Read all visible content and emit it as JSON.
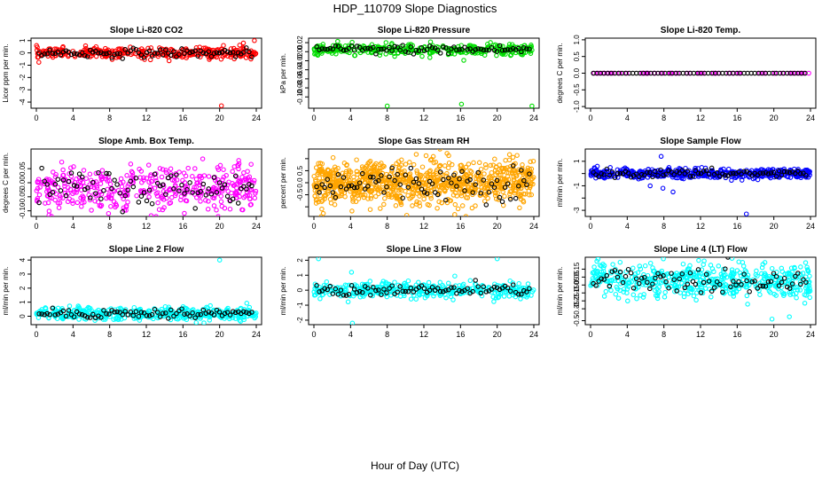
{
  "title": "HDP_110709  Slope Diagnostics",
  "xlabel": "Hour of Day (UTC)",
  "chart_data": [
    {
      "id": "co2",
      "type": "scatter",
      "title": "Slope Li-820 CO2",
      "ylabel": "Licor ppm per min.",
      "xlim": [
        0,
        24
      ],
      "xticks": [
        0,
        4,
        8,
        12,
        16,
        20,
        24
      ],
      "ylim": [
        -4.5,
        1.2
      ],
      "yticks": [
        -4,
        -3,
        -2,
        -1,
        0,
        1
      ],
      "ytick_labels": [
        "-4",
        "-3",
        "-2",
        "-1",
        "0",
        "1"
      ],
      "color": "#ff0000",
      "n_color": 360,
      "n_black": 80,
      "mean": 0.0,
      "sd": 0.22,
      "outliers": [
        [
          20.2,
          -4.3
        ],
        [
          23.8,
          1.0
        ],
        [
          22.6,
          0.8
        ]
      ]
    },
    {
      "id": "pressure",
      "type": "scatter",
      "title": "Slope Li-820 Pressure",
      "ylabel": "kPa per min.",
      "xlim": [
        0,
        24
      ],
      "xticks": [
        0,
        4,
        8,
        12,
        16,
        20,
        24
      ],
      "ylim": [
        -0.125,
        0.03
      ],
      "yticks": [
        -0.1,
        -0.08,
        -0.06,
        -0.04,
        -0.02,
        0,
        0.02
      ],
      "ytick_labels": [
        "-0.10",
        "-0.08",
        "-0.06",
        "-0.04",
        "-0.02",
        "0.00",
        "0.02"
      ],
      "color": "#00dd00",
      "n_color": 360,
      "n_black": 80,
      "mean": 0.005,
      "sd": 0.006,
      "outliers": [
        [
          8,
          -0.12
        ],
        [
          16.1,
          -0.116
        ],
        [
          23.8,
          -0.12
        ]
      ]
    },
    {
      "id": "temp",
      "type": "scatter",
      "title": "Slope Li-820 Temp.",
      "ylabel": "degrees C per min.",
      "xlim": [
        0,
        24
      ],
      "xticks": [
        0,
        4,
        8,
        12,
        16,
        20,
        24
      ],
      "ylim": [
        -1.05,
        1.05
      ],
      "yticks": [
        -1,
        -0.5,
        0,
        0.5,
        1
      ],
      "ytick_labels": [
        "-1.0",
        "-0.5",
        "0.0",
        "0.5",
        "1.0"
      ],
      "color": "#ff00ff",
      "n_color": 60,
      "n_black": 60,
      "mean": 0.0,
      "sd": 0.0,
      "outliers": []
    },
    {
      "id": "ambtemp",
      "type": "scatter",
      "title": "Slope Amb. Box Temp.",
      "ylabel": "degrees C per min.",
      "xlim": [
        0,
        24
      ],
      "xticks": [
        0,
        4,
        8,
        12,
        16,
        20,
        24
      ],
      "ylim": [
        -0.12,
        0.12
      ],
      "yticks": [
        -0.1,
        -0.05,
        0,
        0.05
      ],
      "ytick_labels": [
        "-0.10",
        "-0.05",
        "0.00",
        "0.05"
      ],
      "color": "#ff00ff",
      "n_color": 420,
      "n_black": 80,
      "mean": -0.02,
      "sd": 0.04,
      "outliers": []
    },
    {
      "id": "rh",
      "type": "scatter",
      "title": "Slope Gas Stream RH",
      "ylabel": "percent per min.",
      "xlim": [
        0,
        24
      ],
      "xticks": [
        0,
        4,
        8,
        12,
        16,
        20,
        24
      ],
      "ylim": [
        -1.4,
        1.4
      ],
      "yticks": [
        -1,
        -0.5,
        0,
        0.5,
        1
      ],
      "ytick_labels": [
        "",
        "-0.5",
        "0.0",
        "0.5",
        ""
      ],
      "color": "#ffa500",
      "n_color": 900,
      "n_black": 80,
      "mean": 0.0,
      "sd": 0.45,
      "outliers": []
    },
    {
      "id": "sampleflow",
      "type": "scatter",
      "title": "Slope Sample Flow",
      "ylabel": "ml/min per min.",
      "xlim": [
        0,
        24
      ],
      "xticks": [
        0,
        4,
        8,
        12,
        16,
        20,
        24
      ],
      "ylim": [
        -3.5,
        2
      ],
      "yticks": [
        -3,
        -2,
        -1,
        0,
        1
      ],
      "ytick_labels": [
        "-3",
        "",
        "-1",
        "",
        "1"
      ],
      "color": "#0000ff",
      "n_color": 480,
      "n_black": 80,
      "mean": 0.0,
      "sd": 0.2,
      "outliers": [
        [
          7.7,
          1.4
        ],
        [
          7.9,
          -1.2
        ],
        [
          17,
          -3.3
        ],
        [
          6.5,
          -1.0
        ],
        [
          9,
          -1.5
        ]
      ]
    },
    {
      "id": "line2",
      "type": "scatter",
      "title": "Slope Line 2 Flow",
      "ylabel": "ml/min per min.",
      "xlim": [
        0,
        24
      ],
      "xticks": [
        0,
        4,
        8,
        12,
        16,
        20,
        24
      ],
      "ylim": [
        -0.6,
        4.2
      ],
      "yticks": [
        0,
        1,
        2,
        3,
        4
      ],
      "ytick_labels": [
        "0",
        "1",
        "2",
        "3",
        "4"
      ],
      "color": "#00ffff",
      "n_color": 420,
      "n_black": 80,
      "mean": 0.2,
      "sd": 0.22,
      "outliers": [
        [
          20,
          4.0
        ]
      ]
    },
    {
      "id": "line3",
      "type": "scatter",
      "title": "Slope Line 3 Flow",
      "ylabel": "ml/min per min.",
      "xlim": [
        0,
        24
      ],
      "xticks": [
        0,
        4,
        8,
        12,
        16,
        20,
        24
      ],
      "ylim": [
        -2.3,
        2.2
      ],
      "yticks": [
        -2,
        -1,
        0,
        1,
        2
      ],
      "ytick_labels": [
        "-2",
        "-1",
        "0",
        "1",
        "2"
      ],
      "color": "#00ffff",
      "n_color": 420,
      "n_black": 80,
      "mean": 0.0,
      "sd": 0.25,
      "outliers": [
        [
          4.2,
          -2.2
        ],
        [
          20,
          2.1
        ],
        [
          0.5,
          2.1
        ],
        [
          4.1,
          1.2
        ]
      ]
    },
    {
      "id": "line4",
      "type": "scatter",
      "title": "Slope Line 4 (LT) Flow",
      "ylabel": "ml/min per min.",
      "xlim": [
        0,
        24
      ],
      "xticks": [
        0,
        4,
        8,
        12,
        16,
        20,
        24
      ],
      "ylim": [
        -0.55,
        0.3
      ],
      "yticks": [
        -0.5,
        -0.35,
        -0.25,
        -0.15,
        -0.05,
        0.05,
        0.15
      ],
      "ytick_labels": [
        "-0.5",
        "-0.35",
        "-0.25",
        "-0.15",
        "-0.05",
        "0.05",
        "0.15"
      ],
      "color": "#00ffff",
      "n_color": 520,
      "n_black": 80,
      "mean": 0.0,
      "sd": 0.1,
      "outliers": [
        [
          21.7,
          -0.45
        ],
        [
          19.8,
          -0.48
        ]
      ]
    }
  ]
}
